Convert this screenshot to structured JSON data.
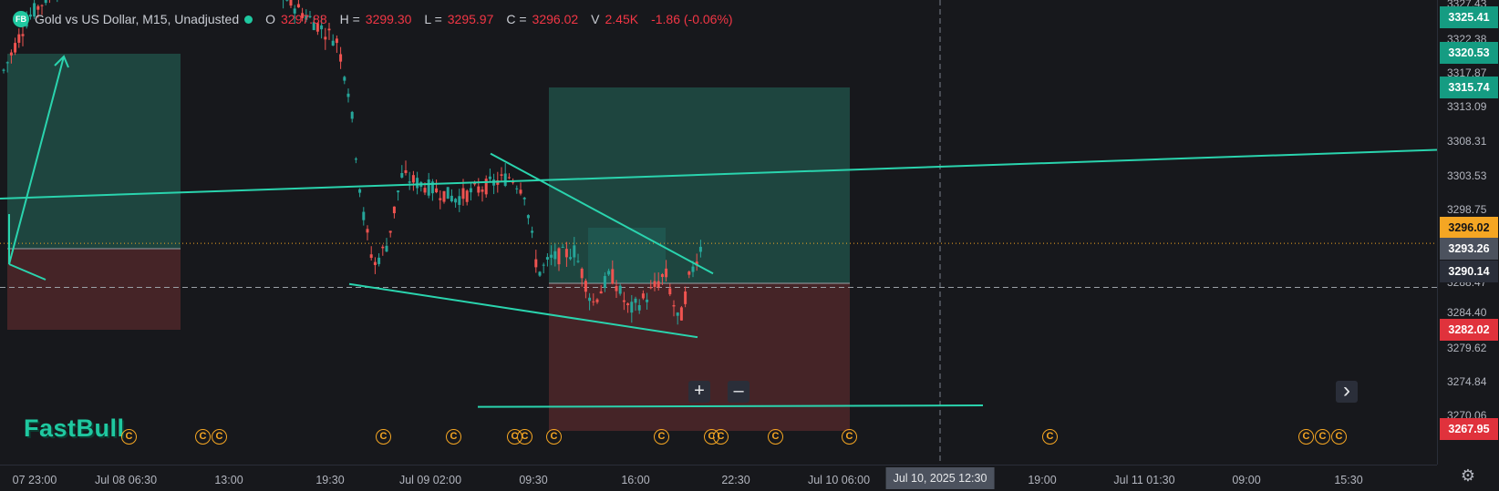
{
  "header": {
    "logo_text": "FB",
    "symbol": "Gold vs US Dollar, M15, Unadjusted",
    "open_label": "O",
    "open": "3297.88",
    "high_label": "H =",
    "high": "3299.30",
    "low_label": "L =",
    "low": "3295.97",
    "close_label": "C =",
    "close": "3296.02",
    "volume_label": "V",
    "volume": "2.45K",
    "change": "-1.86 (-0.06%)"
  },
  "brand": "FastBull",
  "price_axis": {
    "ticks": [
      "3327.43",
      "3322.38",
      "3317.87",
      "3313.09",
      "3308.31",
      "3303.53",
      "3298.75",
      "3288.47",
      "3284.40",
      "3279.62",
      "3274.84",
      "3270.06"
    ],
    "badges": [
      {
        "value": "3325.41",
        "color": "#159c82"
      },
      {
        "value": "3320.53",
        "color": "#159c82"
      },
      {
        "value": "3315.74",
        "color": "#159c82"
      },
      {
        "value": "3296.02",
        "color": "#f5a623"
      },
      {
        "value": "3293.26",
        "color": "#4c525e"
      },
      {
        "value": "3290.14",
        "color": "#2a2e39"
      },
      {
        "value": "3282.02",
        "color": "#e0323c"
      },
      {
        "value": "3267.95",
        "color": "#e0323c"
      }
    ]
  },
  "time_axis": {
    "ticks": [
      "07 23:00",
      "Jul 08 06:30",
      "13:00",
      "19:30",
      "Jul 09 02:00",
      "09:30",
      "16:00",
      "22:30",
      "Jul 10 06:00",
      "19:00",
      "Jul 11 01:30",
      "09:00",
      "15:30"
    ],
    "crosshair_label": "Jul 10, 2025 12:30"
  },
  "event_icon": "C",
  "zoom_in": "+",
  "zoom_out": "–",
  "scroll_right": "›",
  "settings_icon": "gear-icon",
  "chart_data": {
    "type": "candlestick",
    "title": "Gold vs US Dollar, M15, Unadjusted",
    "ylim": [
      3266.5,
      3328.5
    ],
    "current_price": 3296.02,
    "crosshair_price": 3290.14,
    "colors": {
      "up": "#26a69a",
      "down": "#ef5350",
      "drawing": "#2ad4ae",
      "long_zone": "#1f4a44",
      "short_zone": "#4a2629"
    },
    "drawings": [
      {
        "kind": "trendline",
        "from": [
          0,
          3302
        ],
        "to": [
          1576,
          3308.5
        ]
      },
      {
        "kind": "trendline",
        "from": [
          383,
          3290.6
        ],
        "to": [
          765,
          3283.5
        ]
      },
      {
        "kind": "trendline",
        "from": [
          538,
          3308
        ],
        "to": [
          782,
          3292
        ]
      },
      {
        "kind": "hline",
        "from": [
          524,
          3274.2
        ],
        "to": [
          1078,
          3274.4
        ]
      }
    ]
  }
}
